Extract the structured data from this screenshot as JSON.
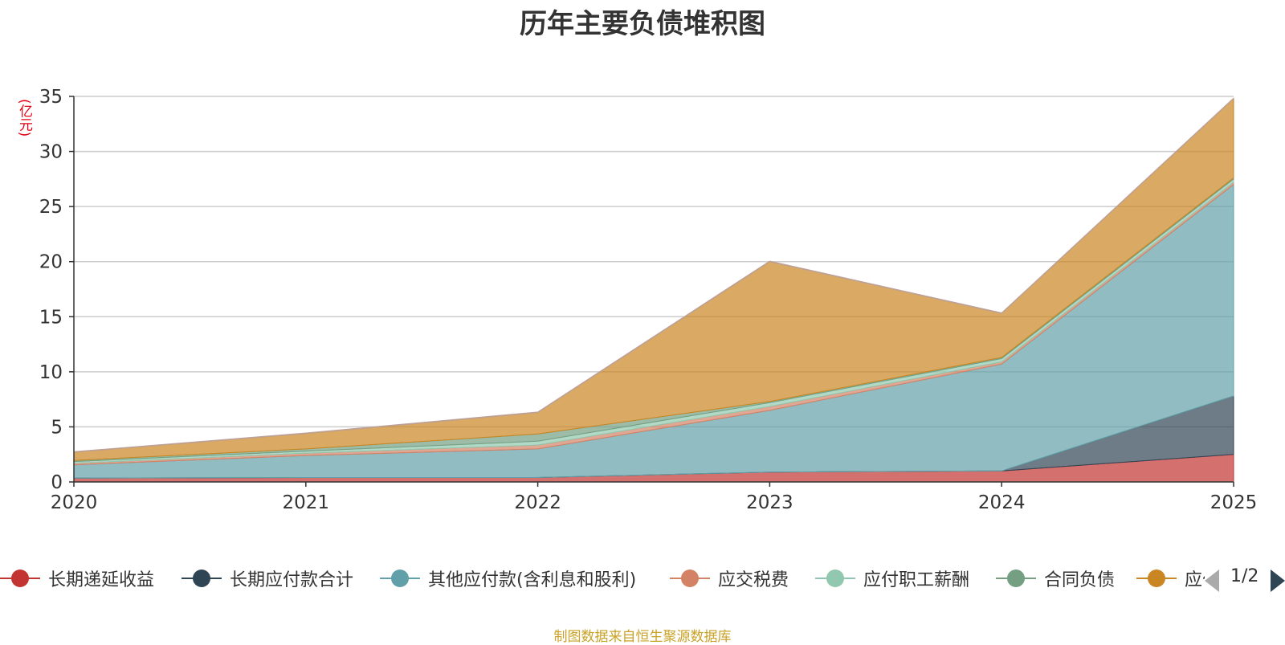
{
  "chart_data": {
    "type": "area",
    "stacked": true,
    "title": "历年主要负债堆积图",
    "unit_label": "(亿元)",
    "x": [
      "2020",
      "2021",
      "2022",
      "2023",
      "2024",
      "2025"
    ],
    "ylim": [
      0,
      35
    ],
    "yticks": [
      0,
      5,
      10,
      15,
      20,
      25,
      30,
      35
    ],
    "grid": true,
    "legend_position": "bottom",
    "series": [
      {
        "name": "长期递延收益",
        "color": "#c23531",
        "values": [
          0.35,
          0.4,
          0.4,
          0.9,
          1.0,
          2.5
        ]
      },
      {
        "name": "长期应付款合计",
        "color": "#2f4554",
        "values": [
          0,
          0,
          0,
          0,
          0,
          5.3
        ]
      },
      {
        "name": "其他应付款(含利息和股利)",
        "color": "#61a0a8",
        "values": [
          1.2,
          2.0,
          2.6,
          5.6,
          9.7,
          19.2
        ]
      },
      {
        "name": "应交税费",
        "color": "#d48265",
        "values": [
          0.15,
          0.2,
          0.35,
          0.35,
          0.2,
          0.2
        ]
      },
      {
        "name": "应付职工薪酬",
        "color": "#91c7ae",
        "values": [
          0.15,
          0.2,
          0.35,
          0.35,
          0.3,
          0.3
        ]
      },
      {
        "name": "合同负债",
        "color": "#749f83",
        "values": [
          0.1,
          0.2,
          0.65,
          0.1,
          0.1,
          0.1
        ]
      },
      {
        "name": "应付账款",
        "color": "#ca8622",
        "values": [
          0.75,
          1.4,
          1.95,
          12.7,
          4.0,
          7.2
        ]
      },
      {
        "name": "",
        "color": "#bda29a",
        "values": [
          0.05,
          0.05,
          0.05,
          0.05,
          0.05,
          0.05
        ]
      }
    ]
  },
  "legend": {
    "items": [
      {
        "label": "长期递延收益",
        "color": "#c23531"
      },
      {
        "label": "长期应付款合计",
        "color": "#2f4554"
      },
      {
        "label": "其他应付款(含利息和股利)",
        "color": "#61a0a8"
      },
      {
        "label": "应交税费",
        "color": "#d48265"
      },
      {
        "label": "应付职工薪酬",
        "color": "#91c7ae"
      },
      {
        "label": "合同负债",
        "color": "#749f83"
      },
      {
        "label": "应付账款",
        "color": "#ca8622"
      }
    ],
    "page_text": "1/2"
  },
  "source_note": "制图数据来自恒生聚源数据库"
}
